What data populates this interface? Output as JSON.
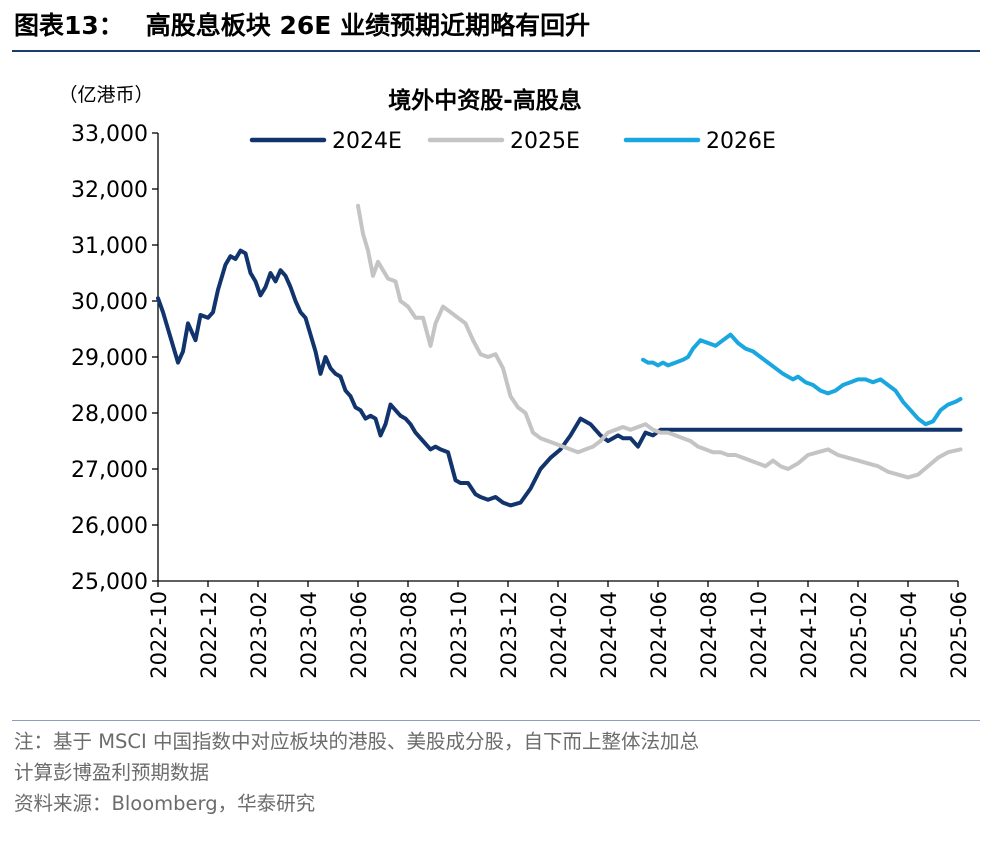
{
  "figure": {
    "label": "图表13：",
    "title": "高股息板块 26E 业绩预期近期略有回升"
  },
  "chart_data": {
    "type": "line",
    "title": "境外中资股-高股息",
    "ylabel": "（亿港币）",
    "ylim": [
      25000,
      33000
    ],
    "yticks": [
      25000,
      26000,
      27000,
      28000,
      29000,
      30000,
      31000,
      32000,
      33000
    ],
    "ytick_labels": [
      "25,000",
      "26,000",
      "27,000",
      "28,000",
      "29,000",
      "30,000",
      "31,000",
      "32,000",
      "33,000"
    ],
    "x_unit": "month index from 2022-10",
    "xlim": [
      0,
      16
    ],
    "xticks": [
      0,
      1,
      2,
      3,
      4,
      5,
      6,
      7,
      8,
      9,
      10,
      11,
      12,
      13,
      14,
      15,
      16
    ],
    "xtick_labels": [
      "2022-10",
      "2022-12",
      "2023-02",
      "2023-04",
      "2023-06",
      "2023-08",
      "2023-10",
      "2023-12",
      "2024-02",
      "2024-04",
      "2024-06",
      "2024-08",
      "2024-10",
      "2024-12",
      "2025-02",
      "2025-04",
      "2025-06"
    ],
    "legend_position": "top",
    "series": [
      {
        "name": "2024E",
        "color": "#12346d",
        "x": [
          0,
          0.1,
          0.25,
          0.4,
          0.5,
          0.6,
          0.75,
          0.85,
          1,
          1.1,
          1.2,
          1.35,
          1.45,
          1.55,
          1.65,
          1.75,
          1.85,
          1.95,
          2.05,
          2.15,
          2.25,
          2.35,
          2.45,
          2.55,
          2.65,
          2.75,
          2.85,
          2.95,
          3.05,
          3.15,
          3.25,
          3.35,
          3.45,
          3.55,
          3.65,
          3.75,
          3.85,
          3.95,
          4.05,
          4.15,
          4.25,
          4.35,
          4.45,
          4.55,
          4.65,
          4.75,
          4.85,
          4.95,
          5.05,
          5.15,
          5.3,
          5.45,
          5.55,
          5.65,
          5.8,
          5.95,
          6.05,
          6.2,
          6.35,
          6.45,
          6.6,
          6.75,
          6.9,
          7.05,
          7.25,
          7.45,
          7.65,
          7.85,
          8.05,
          8.25,
          8.45,
          8.65,
          8.85,
          9.0,
          9.1,
          9.2,
          9.3,
          9.45,
          9.6,
          9.75,
          9.9,
          10.05,
          10.15,
          10.3,
          10.45,
          10.6,
          10.75,
          10.9,
          11.05,
          11.2,
          11.3,
          11.4,
          11.55,
          11.7,
          11.85,
          11.95,
          12.1,
          12.25,
          12.4,
          12.5,
          12.6,
          12.75,
          12.9,
          13.05,
          13.2,
          13.35,
          13.5,
          13.6,
          13.7,
          13.8,
          13.95,
          14.1,
          14.25,
          14.4,
          14.55,
          14.7,
          14.9,
          15.1,
          15.3,
          15.5,
          15.7,
          15.9,
          16.05
        ],
        "values": [
          30050,
          29800,
          29350,
          28900,
          29100,
          29600,
          29300,
          29750,
          29700,
          29800,
          30200,
          30650,
          30800,
          30750,
          30900,
          30850,
          30500,
          30350,
          30100,
          30250,
          30500,
          30350,
          30550,
          30450,
          30250,
          30000,
          29800,
          29700,
          29400,
          29100,
          28700,
          29000,
          28800,
          28700,
          28650,
          28400,
          28300,
          28100,
          28050,
          27900,
          27950,
          27900,
          27600,
          27800,
          28150,
          28050,
          27950,
          27900,
          27800,
          27650,
          27500,
          27350,
          27400,
          27350,
          27300,
          26800,
          26750,
          26750,
          26550,
          26500,
          26450,
          26500,
          26400,
          26350,
          26400,
          26650,
          27000,
          27200,
          27350,
          27600,
          27900,
          27800,
          27600,
          27500,
          27550,
          27600,
          27550,
          27550,
          27400,
          27650,
          27600,
          27700,
          27700,
          27700,
          27700,
          27700,
          27700,
          27700,
          27700,
          27700,
          27700,
          27700,
          27700,
          27700,
          27700,
          27700,
          27700,
          27700,
          27700,
          27700,
          27700,
          27700,
          27700,
          27700,
          27700,
          27700,
          27700,
          27700,
          27700,
          27700,
          27700,
          27700,
          27700,
          27700,
          27700,
          27700,
          27700,
          27700,
          27700,
          27700,
          27700,
          27700,
          27700
        ]
      },
      {
        "name": "2025E",
        "color": "#c4c4c4",
        "x": [
          4,
          4.1,
          4.2,
          4.3,
          4.4,
          4.5,
          4.6,
          4.75,
          4.85,
          5.0,
          5.15,
          5.3,
          5.45,
          5.55,
          5.7,
          5.85,
          6.0,
          6.15,
          6.3,
          6.45,
          6.6,
          6.75,
          6.9,
          7.05,
          7.2,
          7.35,
          7.5,
          7.65,
          7.8,
          7.95,
          8.1,
          8.25,
          8.4,
          8.55,
          8.7,
          8.85,
          9.0,
          9.15,
          9.3,
          9.45,
          9.6,
          9.75,
          9.9,
          10.05,
          10.2,
          10.35,
          10.5,
          10.65,
          10.8,
          10.95,
          11.1,
          11.25,
          11.4,
          11.55,
          11.7,
          11.85,
          12.0,
          12.15,
          12.3,
          12.45,
          12.6,
          12.8,
          13.0,
          13.2,
          13.4,
          13.6,
          13.8,
          14.0,
          14.2,
          14.4,
          14.6,
          14.8,
          15.0,
          15.2,
          15.4,
          15.6,
          15.8,
          16.05
        ],
        "values": [
          31700,
          31200,
          30900,
          30450,
          30700,
          30550,
          30400,
          30350,
          30000,
          29900,
          29700,
          29700,
          29200,
          29600,
          29900,
          29800,
          29700,
          29600,
          29300,
          29050,
          29000,
          29050,
          28800,
          28300,
          28100,
          28000,
          27650,
          27550,
          27500,
          27450,
          27400,
          27350,
          27300,
          27350,
          27400,
          27500,
          27650,
          27700,
          27750,
          27700,
          27750,
          27800,
          27700,
          27650,
          27650,
          27600,
          27550,
          27500,
          27400,
          27350,
          27300,
          27300,
          27250,
          27250,
          27200,
          27150,
          27100,
          27050,
          27150,
          27050,
          27000,
          27100,
          27250,
          27300,
          27350,
          27250,
          27200,
          27150,
          27100,
          27050,
          26950,
          26900,
          26850,
          26900,
          27050,
          27200,
          27300,
          27350
        ]
      },
      {
        "name": "2026E",
        "color": "#1aa7e0",
        "x": [
          9.7,
          9.8,
          9.9,
          10.0,
          10.1,
          10.2,
          10.35,
          10.5,
          10.6,
          10.7,
          10.85,
          11.0,
          11.15,
          11.3,
          11.45,
          11.6,
          11.75,
          11.9,
          12.05,
          12.2,
          12.35,
          12.5,
          12.6,
          12.7,
          12.8,
          12.95,
          13.1,
          13.25,
          13.4,
          13.55,
          13.7,
          13.85,
          14.0,
          14.15,
          14.3,
          14.45,
          14.6,
          14.75,
          14.9,
          15.05,
          15.2,
          15.35,
          15.5,
          15.65,
          15.8,
          15.95,
          16.05
        ],
        "values": [
          28950,
          28900,
          28900,
          28850,
          28900,
          28850,
          28900,
          28950,
          29000,
          29150,
          29300,
          29250,
          29200,
          29300,
          29400,
          29250,
          29150,
          29100,
          29000,
          28900,
          28800,
          28700,
          28650,
          28600,
          28650,
          28550,
          28500,
          28400,
          28350,
          28400,
          28500,
          28550,
          28600,
          28600,
          28550,
          28600,
          28500,
          28400,
          28200,
          28050,
          27900,
          27800,
          27850,
          28050,
          28150,
          28200,
          28250
        ]
      }
    ]
  },
  "notes": {
    "line1": "注：基于 MSCI 中国指数中对应板块的港股、美股成分股，自下而上整体法加总",
    "line2": "计算彭博盈利预期数据",
    "source": "资料来源：Bloomberg，华泰研究"
  }
}
